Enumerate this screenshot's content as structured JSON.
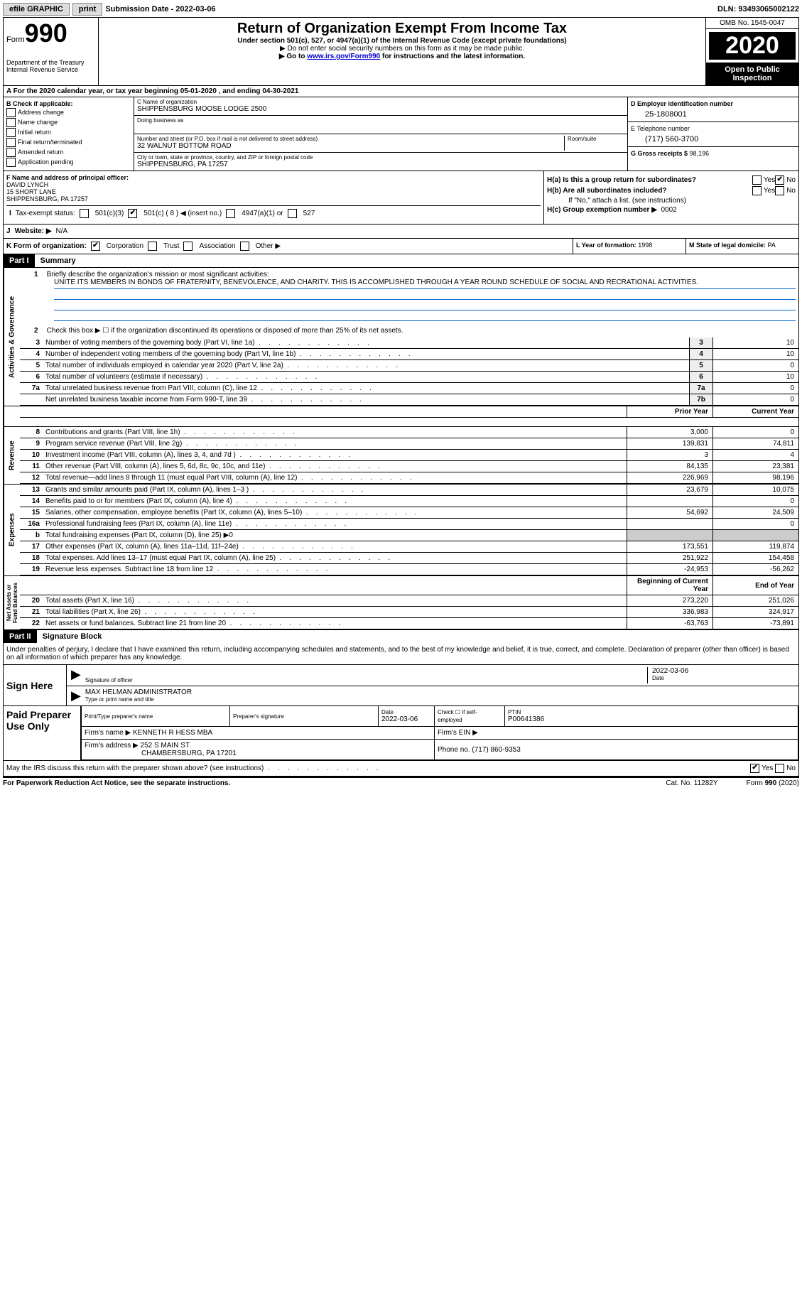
{
  "topbar": {
    "efile": "efile GRAPHIC",
    "print": "print",
    "sub_label": "Submission Date - ",
    "sub_date": "2022-03-06",
    "dln_label": "DLN: ",
    "dln": "93493065002122"
  },
  "header": {
    "form_word": "Form",
    "form_num": "990",
    "dept1": "Department of the Treasury",
    "dept2": "Internal Revenue Service",
    "title": "Return of Organization Exempt From Income Tax",
    "subtitle": "Under section 501(c), 527, or 4947(a)(1) of the Internal Revenue Code (except private foundations)",
    "note1_prefix": "▶ Do not enter social security numbers on this form as it may be made public.",
    "note2_prefix": "▶ Go to ",
    "note2_link": "www.irs.gov/Form990",
    "note2_suffix": " for instructions and the latest information.",
    "omb": "OMB No. 1545-0047",
    "year": "2020",
    "open1": "Open to Public",
    "open2": "Inspection"
  },
  "line_a": "A For the 2020 calendar year, or tax year beginning 05-01-2020   , and ending 04-30-2021",
  "box_b": {
    "head": "B Check if applicable:",
    "addr": "Address change",
    "name": "Name change",
    "init": "Initial return",
    "final": "Final return/terminated",
    "amend": "Amended return",
    "app": "Application pending"
  },
  "box_c": {
    "name_label": "C Name of organization",
    "name": "SHIPPENSBURG MOOSE LODGE 2500",
    "dba_label": "Doing business as",
    "dba": "",
    "addr_label": "Number and street (or P.O. box if mail is not delivered to street address)",
    "addr": "32 WALNUT BOTTOM ROAD",
    "room_label": "Room/suite",
    "room": "",
    "city_label": "City or town, state or province, country, and ZIP or foreign postal code",
    "city": "SHIPPENSBURG, PA  17257"
  },
  "box_d": {
    "label": "D Employer identification number",
    "val": "25-1808001"
  },
  "box_e": {
    "label": "E Telephone number",
    "val": "(717) 560-3700"
  },
  "box_g": {
    "label": "G Gross receipts $ ",
    "val": "98,196"
  },
  "box_f": {
    "label": "F  Name and address of principal officer:",
    "name": "DAVID LYNCH",
    "addr1": "15 SHORT LANE",
    "addr2": "SHIPPENSBURG, PA  17257"
  },
  "box_h": {
    "a": "H(a)  Is this a group return for subordinates?",
    "b": "H(b)  Are all subordinates included?",
    "b_note": "If \"No,\" attach a list. (see instructions)",
    "c": "H(c)  Group exemption number ▶",
    "c_val": "0002",
    "yes": "Yes",
    "no": "No"
  },
  "row_i": {
    "label": "Tax-exempt status:",
    "c3": "501(c)(3)",
    "c": "501(c) ( ",
    "c_num": "8",
    "c_suf": " ) ◀ (insert no.)",
    "a1": "4947(a)(1) or",
    "s527": "527"
  },
  "row_j": {
    "label": "Website: ▶",
    "val": "N/A"
  },
  "row_k": {
    "label": "K Form of organization:",
    "corp": "Corporation",
    "trust": "Trust",
    "assoc": "Association",
    "other": "Other ▶"
  },
  "row_l": {
    "label": "L Year of formation: ",
    "val": "1998"
  },
  "row_m": {
    "label": "M State of legal domicile: ",
    "val": "PA"
  },
  "part1": {
    "hdr": "Part I",
    "title": "Summary",
    "q1": "Briefly describe the organization's mission or most significant activities:",
    "mission": "UNITE ITS MEMBERS IN BONDS OF FRATERNITY, BENEVOLENCE, AND CHARITY. THIS IS ACCOMPLISHED THROUGH A YEAR ROUND SCHEDULE OF SOCIAL AND RECRATIONAL ACTIVITIES.",
    "q2": "Check this box ▶ ☐  if the organization discontinued its operations or disposed of more than 25% of its net assets.",
    "side_ag": "Activities & Governance",
    "side_rev": "Revenue",
    "side_exp": "Expenses",
    "side_na": "Net Assets or\nFund Balances",
    "hdr_prior": "Prior Year",
    "hdr_curr": "Current Year",
    "hdr_boy": "Beginning of Current Year",
    "hdr_eoy": "End of Year",
    "lines": {
      "l3": {
        "n": "3",
        "t": "Number of voting members of the governing body (Part VI, line 1a)",
        "b": "3",
        "v": "10"
      },
      "l4": {
        "n": "4",
        "t": "Number of independent voting members of the governing body (Part VI, line 1b)",
        "b": "4",
        "v": "10"
      },
      "l5": {
        "n": "5",
        "t": "Total number of individuals employed in calendar year 2020 (Part V, line 2a)",
        "b": "5",
        "v": "0"
      },
      "l6": {
        "n": "6",
        "t": "Total number of volunteers (estimate if necessary)",
        "b": "6",
        "v": "10"
      },
      "l7a": {
        "n": "7a",
        "t": "Total unrelated business revenue from Part VIII, column (C), line 12",
        "b": "7a",
        "v": "0"
      },
      "l7b": {
        "n": "",
        "t": "Net unrelated business taxable income from Form 990-T, line 39",
        "b": "7b",
        "v": "0"
      }
    },
    "fin": {
      "l8": {
        "n": "8",
        "t": "Contributions and grants (Part VIII, line 1h)",
        "p": "3,000",
        "c": "0"
      },
      "l9": {
        "n": "9",
        "t": "Program service revenue (Part VIII, line 2g)",
        "p": "139,831",
        "c": "74,811"
      },
      "l10": {
        "n": "10",
        "t": "Investment income (Part VIII, column (A), lines 3, 4, and 7d )",
        "p": "3",
        "c": "4"
      },
      "l11": {
        "n": "11",
        "t": "Other revenue (Part VIII, column (A), lines 5, 6d, 8c, 9c, 10c, and 11e)",
        "p": "84,135",
        "c": "23,381"
      },
      "l12": {
        "n": "12",
        "t": "Total revenue—add lines 8 through 11 (must equal Part VIII, column (A), line 12)",
        "p": "226,969",
        "c": "98,196"
      },
      "l13": {
        "n": "13",
        "t": "Grants and similar amounts paid (Part IX, column (A), lines 1–3 )",
        "p": "23,679",
        "c": "10,075"
      },
      "l14": {
        "n": "14",
        "t": "Benefits paid to or for members (Part IX, column (A), line 4)",
        "p": "",
        "c": "0"
      },
      "l15": {
        "n": "15",
        "t": "Salaries, other compensation, employee benefits (Part IX, column (A), lines 5–10)",
        "p": "54,692",
        "c": "24,509"
      },
      "l16a": {
        "n": "16a",
        "t": "Professional fundraising fees (Part IX, column (A), line 11e)",
        "p": "",
        "c": "0"
      },
      "l16b": {
        "n": "b",
        "t": "Total fundraising expenses (Part IX, column (D), line 25) ▶0"
      },
      "l17": {
        "n": "17",
        "t": "Other expenses (Part IX, column (A), lines 11a–11d, 11f–24e)",
        "p": "173,551",
        "c": "119,874"
      },
      "l18": {
        "n": "18",
        "t": "Total expenses. Add lines 13–17 (must equal Part IX, column (A), line 25)",
        "p": "251,922",
        "c": "154,458"
      },
      "l19": {
        "n": "19",
        "t": "Revenue less expenses. Subtract line 18 from line 12",
        "p": "-24,953",
        "c": "-56,262"
      },
      "l20": {
        "n": "20",
        "t": "Total assets (Part X, line 16)",
        "p": "273,220",
        "c": "251,026"
      },
      "l21": {
        "n": "21",
        "t": "Total liabilities (Part X, line 26)",
        "p": "336,983",
        "c": "324,917"
      },
      "l22": {
        "n": "22",
        "t": "Net assets or fund balances. Subtract line 21 from line 20",
        "p": "-63,763",
        "c": "-73,891"
      }
    }
  },
  "part2": {
    "hdr": "Part II",
    "title": "Signature Block",
    "penalty": "Under penalties of perjury, I declare that I have examined this return, including accompanying schedules and statements, and to the best of my knowledge and belief, it is true, correct, and complete. Declaration of preparer (other than officer) is based on all information of which preparer has any knowledge.",
    "sign_here": "Sign Here",
    "sig_officer": "Signature of officer",
    "sig_date": "2022-03-06",
    "date_lbl": "Date",
    "officer": "MAX HELMAN  ADMINISTRATOR",
    "officer_sub": "Type or print name and title",
    "paid": "Paid Preparer Use Only",
    "prep_name_lbl": "Print/Type preparer's name",
    "prep_name": "",
    "prep_sig_lbl": "Preparer's signature",
    "prep_date_lbl": "Date",
    "prep_date": "2022-03-06",
    "self_emp": "Check ☐  if self-employed",
    "ptin_lbl": "PTIN",
    "ptin": "P00641386",
    "firm_name_lbl": "Firm's name    ▶ ",
    "firm_name": "KENNETH R HESS MBA",
    "firm_ein_lbl": "Firm's EIN ▶",
    "firm_addr_lbl": "Firm's address ▶ ",
    "firm_addr1": "252 S MAIN ST",
    "firm_addr2": "CHAMBERSBURG, PA  17201",
    "firm_phone_lbl": "Phone no. ",
    "firm_phone": "(717) 860-9353"
  },
  "footer": {
    "discuss": "May the IRS discuss this return with the preparer shown above? (see instructions)",
    "yes": "Yes",
    "no": "No",
    "pra": "For Paperwork Reduction Act Notice, see the separate instructions.",
    "cat": "Cat. No. 11282Y",
    "form": "Form 990 (2020)"
  }
}
